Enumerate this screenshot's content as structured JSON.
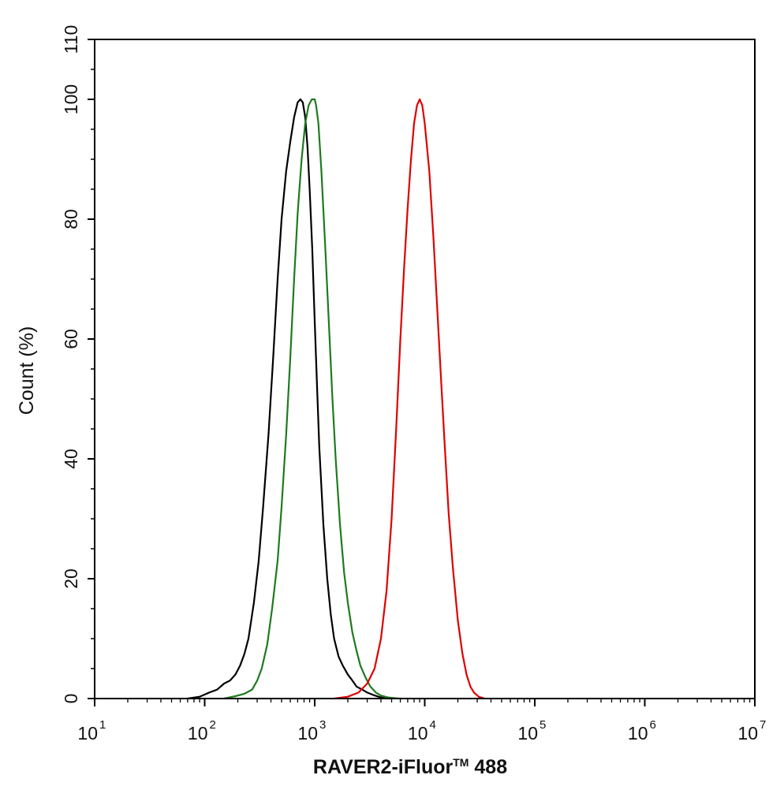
{
  "chart_data": {
    "type": "line",
    "title": "",
    "xlabel": "RAVER2-iFluor",
    "xlabel_mark": "TM",
    "xlabel_suffix": " 488",
    "ylabel": "Count  (%)",
    "xscale": "log",
    "xlim": [
      10,
      10000000
    ],
    "ylim": [
      0,
      110
    ],
    "yticks": [
      "0",
      "20",
      "40",
      "60",
      "80",
      "100",
      "110"
    ],
    "xticks": [
      {
        "base": "10",
        "exp": "1"
      },
      {
        "base": "10",
        "exp": "2"
      },
      {
        "base": "10",
        "exp": "3"
      },
      {
        "base": "10",
        "exp": "4"
      },
      {
        "base": "10",
        "exp": "5"
      },
      {
        "base": "10",
        "exp": "6"
      },
      {
        "base": "10",
        "exp": "7"
      }
    ],
    "grid": false,
    "legend": "none",
    "series": [
      {
        "color": "#000000",
        "x": [
          70,
          90,
          110,
          130,
          150,
          170,
          190,
          210,
          230,
          250,
          280,
          310,
          340,
          380,
          420,
          460,
          500,
          550,
          600,
          650,
          700,
          740,
          780,
          820,
          860,
          900,
          950,
          1000,
          1050,
          1100,
          1200,
          1300,
          1400,
          1500,
          1650,
          1800,
          2000,
          2200,
          2400,
          2700,
          3000,
          3400,
          3800,
          4200,
          4800
        ],
        "y": [
          0,
          0.3,
          1,
          1.5,
          2.5,
          3,
          4,
          5.5,
          7.5,
          10,
          16,
          23,
          32,
          44,
          57,
          70,
          80,
          88,
          93,
          97,
          99.5,
          100,
          99.5,
          97,
          92,
          85,
          75,
          63,
          52,
          42,
          29,
          20,
          14,
          10,
          7,
          5.5,
          4,
          3,
          2,
          1.5,
          1,
          0.6,
          0.3,
          0.1,
          0
        ]
      },
      {
        "color": "#1f7a1f",
        "x": [
          150,
          190,
          230,
          270,
          300,
          330,
          370,
          410,
          460,
          500,
          550,
          600,
          650,
          700,
          760,
          820,
          880,
          940,
          980,
          1000,
          1030,
          1080,
          1150,
          1250,
          1350,
          1450,
          1550,
          1700,
          1850,
          2000,
          2200,
          2400,
          2600,
          2900,
          3200,
          3600,
          4000,
          4600,
          5400,
          6200
        ],
        "y": [
          0,
          0.4,
          0.8,
          1.5,
          3,
          5,
          9,
          15,
          23,
          32,
          44,
          57,
          70,
          81,
          90,
          96,
          99,
          100,
          100,
          100,
          99,
          96,
          88,
          75,
          62,
          50,
          40,
          29,
          21,
          16,
          11,
          8,
          5.5,
          3.5,
          2,
          1,
          0.5,
          0.2,
          0.05,
          0
        ]
      },
      {
        "color": "#e00000",
        "x": [
          1500,
          2000,
          2500,
          3000,
          3500,
          4000,
          4500,
          5000,
          5500,
          6000,
          6500,
          7000,
          7500,
          8000,
          8500,
          9000,
          9500,
          10000,
          11000,
          12000,
          13000,
          14000,
          15000,
          16500,
          18000,
          20000,
          22000,
          24000,
          26000,
          28000,
          31000,
          35000
        ],
        "y": [
          0,
          0.3,
          1,
          2.5,
          5,
          10,
          18,
          30,
          45,
          60,
          72,
          82,
          90,
          96,
          99,
          100,
          99,
          96,
          88,
          77,
          65,
          54,
          44,
          31,
          22,
          13,
          7.5,
          4,
          2,
          1,
          0.3,
          0
        ]
      }
    ]
  }
}
